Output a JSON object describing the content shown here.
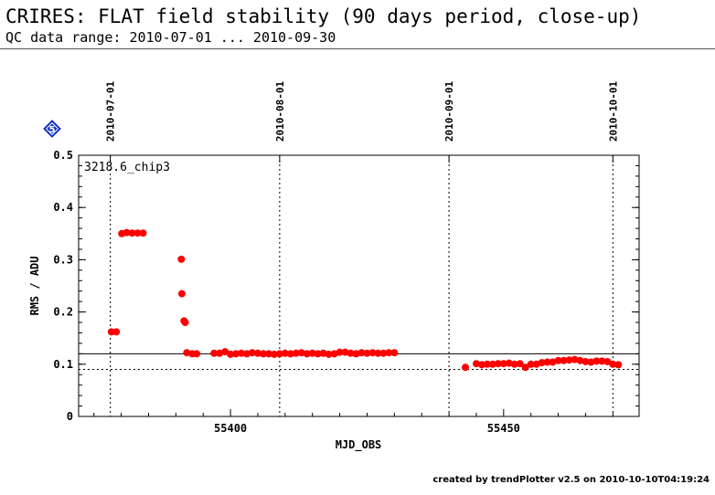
{
  "header": {
    "title": "CRIRES: FLAT field stability (90 days period, close-up)",
    "subtitle": "QC data range: 2010-07-01 ... 2010-09-30"
  },
  "badge": {
    "label": "5",
    "color": "#1030c0"
  },
  "footer": {
    "text": "created by trendPlotter v2.5 on 2010-10-10T04:19:24"
  },
  "chart_data": {
    "type": "scatter",
    "title": "",
    "panel_label": "3218.6_chip3",
    "xlabel": "MJD_OBS",
    "ylabel": "RMS / ADU",
    "xlim": [
      55372.2,
      55474.8
    ],
    "ylim": [
      0,
      0.5
    ],
    "xticks": [
      55400,
      55450
    ],
    "yticks": [
      0,
      0.1,
      0.2,
      0.3,
      0.4,
      0.5
    ],
    "ytick_labels": [
      "0",
      "0.1",
      "0.2",
      "0.3",
      "0.4",
      "0.5"
    ],
    "top_axis_dates": [
      {
        "label": "2010-07-01",
        "mjd": 55378
      },
      {
        "label": "2010-08-01",
        "mjd": 55409
      },
      {
        "label": "2010-09-01",
        "mjd": 55440
      },
      {
        "label": "2010-10-01",
        "mjd": 55470
      }
    ],
    "reference_lines": [
      {
        "y": 0.12,
        "style": "solid"
      },
      {
        "y": 0.09,
        "style": "dotted"
      }
    ],
    "marker_color": "#ff0000",
    "series": [
      {
        "x": [
          55378.2,
          55379.1,
          55380.1,
          55381.0,
          55382.0,
          55383.0,
          55384.0,
          55391.0,
          55391.1,
          55391.5,
          55391.7,
          55392.0,
          55393.0,
          55393.8,
          55397.0,
          55398.0,
          55399.0,
          55400.0,
          55401.0,
          55402.0,
          55403.0,
          55404.0,
          55405.0,
          55406.0,
          55407.0,
          55408.0,
          55409.0,
          55410.0,
          55411.0,
          55412.0,
          55413.0,
          55414.0,
          55415.0,
          55416.0,
          55417.0,
          55418.0,
          55419.0,
          55420.0,
          55421.0,
          55422.0,
          55423.0,
          55424.0,
          55425.0,
          55426.0,
          55427.0,
          55428.0,
          55429.0,
          55430.0,
          55443.0,
          55445.0,
          55446.0,
          55447.0,
          55448.0,
          55449.0,
          55450.0,
          55451.0,
          55452.0,
          55453.0,
          55454.0,
          55455.0,
          55456.0,
          55457.0,
          55458.0,
          55459.0,
          55460.0,
          55461.0,
          55462.0,
          55463.0,
          55464.0,
          55465.0,
          55466.0,
          55467.0,
          55468.0,
          55469.0,
          55470.0,
          55471.0
        ],
        "y": [
          0.162,
          0.162,
          0.35,
          0.352,
          0.351,
          0.351,
          0.351,
          0.301,
          0.235,
          0.183,
          0.18,
          0.122,
          0.12,
          0.12,
          0.121,
          0.121,
          0.124,
          0.119,
          0.12,
          0.121,
          0.12,
          0.122,
          0.121,
          0.12,
          0.12,
          0.119,
          0.12,
          0.121,
          0.12,
          0.121,
          0.122,
          0.12,
          0.121,
          0.12,
          0.121,
          0.119,
          0.12,
          0.123,
          0.123,
          0.121,
          0.12,
          0.122,
          0.121,
          0.122,
          0.121,
          0.121,
          0.122,
          0.122,
          0.094,
          0.101,
          0.099,
          0.1,
          0.1,
          0.101,
          0.101,
          0.102,
          0.1,
          0.101,
          0.094,
          0.1,
          0.1,
          0.103,
          0.104,
          0.104,
          0.107,
          0.107,
          0.108,
          0.109,
          0.107,
          0.105,
          0.104,
          0.106,
          0.106,
          0.105,
          0.1,
          0.099
        ]
      }
    ]
  }
}
